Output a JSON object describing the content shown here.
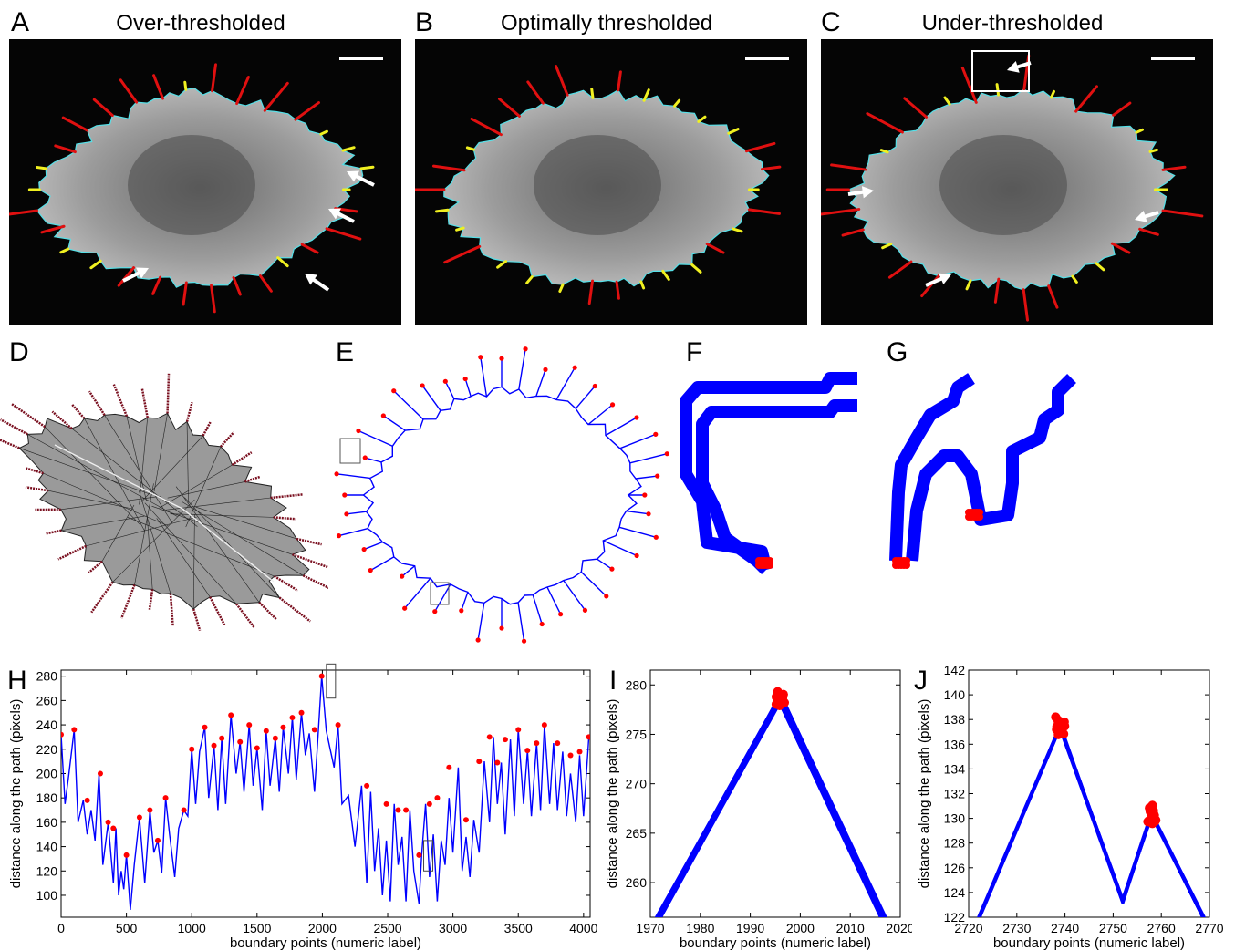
{
  "panels": {
    "A": {
      "letter": "A",
      "title": "Over-thresholded"
    },
    "B": {
      "letter": "B",
      "title": "Optimally thresholded"
    },
    "C": {
      "letter": "C",
      "title": "Under-thresholded"
    },
    "D": {
      "letter": "D"
    },
    "E": {
      "letter": "E"
    },
    "F": {
      "letter": "F"
    },
    "G": {
      "letter": "G"
    },
    "H": {
      "letter": "H"
    },
    "I": {
      "letter": "I"
    },
    "J": {
      "letter": "J"
    }
  },
  "colors": {
    "cell_boundary": "#55e0e8",
    "filopodia_long": "#e01010",
    "filopodia_short": "#f0f020",
    "path": "#0000ff",
    "tips": "#ff0000",
    "triangulation_fill": "#9a9a9a"
  },
  "chart_data": [
    {
      "panel": "H",
      "type": "line",
      "xlabel": "boundary points (numeric label)",
      "ylabel": "distance along the path (pixels)",
      "xlim": [
        0,
        4050
      ],
      "ylim": [
        82,
        285
      ],
      "xticks": [
        0,
        500,
        1000,
        1500,
        2000,
        2500,
        3000,
        3500,
        4000
      ],
      "yticks": [
        100,
        120,
        140,
        160,
        180,
        200,
        220,
        240,
        260,
        280
      ],
      "series": [
        {
          "x": [
            0,
            30,
            60,
            100,
            130,
            170,
            200,
            230,
            260,
            290,
            320,
            360,
            400,
            420,
            440,
            460,
            480,
            500,
            530,
            560,
            600,
            640,
            680,
            710,
            740,
            770,
            800,
            830,
            870,
            900,
            940,
            970,
            1000,
            1030,
            1060,
            1100,
            1130,
            1170,
            1200,
            1230,
            1260,
            1300,
            1340,
            1370,
            1400,
            1440,
            1470,
            1500,
            1540,
            1570,
            1600,
            1640,
            1670,
            1700,
            1740,
            1770,
            1800,
            1840,
            1870,
            1900,
            1940,
            1970,
            1995,
            2030,
            2060,
            2090,
            2120,
            2150,
            2200,
            2250,
            2300,
            2340,
            2370,
            2400,
            2430,
            2460,
            2490,
            2520,
            2550,
            2580,
            2610,
            2640,
            2670,
            2700,
            2740,
            2760,
            2790,
            2820,
            2850,
            2880,
            2910,
            2940,
            2970,
            3000,
            3040,
            3070,
            3100,
            3130,
            3160,
            3200,
            3240,
            3280,
            3310,
            3340,
            3370,
            3400,
            3440,
            3470,
            3500,
            3540,
            3570,
            3600,
            3640,
            3670,
            3700,
            3740,
            3770,
            3800,
            3840,
            3870,
            3900,
            3940,
            3970,
            4000,
            4040
          ],
          "y": [
            232,
            175,
            200,
            236,
            160,
            178,
            150,
            170,
            145,
            200,
            125,
            160,
            110,
            155,
            100,
            120,
            105,
            133,
            88,
            125,
            164,
            110,
            170,
            135,
            145,
            118,
            180,
            150,
            115,
            155,
            170,
            165,
            220,
            175,
            218,
            238,
            180,
            223,
            170,
            229,
            175,
            248,
            200,
            226,
            185,
            240,
            190,
            221,
            170,
            235,
            190,
            229,
            185,
            238,
            200,
            246,
            195,
            250,
            215,
            233,
            185,
            236,
            280,
            235,
            220,
            205,
            240,
            175,
            182,
            140,
            190,
            110,
            185,
            120,
            155,
            100,
            145,
            95,
            175,
            125,
            148,
            95,
            170,
            120,
            93,
            133,
            175,
            115,
            150,
            95,
            145,
            125,
            180,
            135,
            205,
            120,
            148,
            115,
            162,
            135,
            210,
            160,
            230,
            175,
            209,
            150,
            228,
            165,
            236,
            175,
            219,
            165,
            225,
            170,
            240,
            175,
            225,
            170,
            218,
            165,
            200,
            160,
            215,
            165,
            230
          ],
          "tips_x": [
            0,
            100,
            200,
            300,
            360,
            400,
            500,
            600,
            680,
            740,
            800,
            940,
            1000,
            1100,
            1170,
            1230,
            1300,
            1370,
            1440,
            1500,
            1570,
            1640,
            1700,
            1770,
            1840,
            1940,
            1995,
            2120,
            2340,
            2490,
            2580,
            2640,
            2740,
            2820,
            2880,
            2970,
            3100,
            3200,
            3280,
            3340,
            3400,
            3500,
            3570,
            3640,
            3700,
            3800,
            3900,
            3970,
            4040
          ],
          "tips_y": [
            232,
            236,
            178,
            200,
            160,
            155,
            133,
            164,
            170,
            145,
            180,
            170,
            220,
            238,
            223,
            229,
            248,
            226,
            240,
            221,
            235,
            229,
            238,
            246,
            250,
            236,
            280,
            240,
            190,
            175,
            170,
            170,
            133,
            175,
            180,
            205,
            162,
            210,
            230,
            209,
            228,
            236,
            219,
            225,
            240,
            225,
            215,
            218,
            230
          ]
        }
      ],
      "boxes": [
        {
          "x": [
            1975,
            2020
          ],
          "y": [
            262,
            290
          ]
        },
        {
          "x": [
            2720,
            2780
          ],
          "y": [
            120,
            145
          ]
        }
      ]
    },
    {
      "panel": "I",
      "type": "line",
      "xlabel": "boundary points (numeric label)",
      "ylabel": "distance along the path (pixels)",
      "xlim": [
        1970,
        2020
      ],
      "ylim": [
        256.5,
        281.5
      ],
      "xticks": [
        1970,
        1980,
        1990,
        2000,
        2010,
        2020
      ],
      "yticks": [
        260,
        265,
        270,
        275,
        280
      ],
      "series": [
        {
          "x": [
            1970,
            1996,
            2017
          ],
          "y": [
            255,
            278.6,
            256
          ]
        }
      ],
      "tips": {
        "x": 1996,
        "y": 278.5
      }
    },
    {
      "panel": "J",
      "type": "line",
      "xlabel": "boundary points (numeric label)",
      "ylabel": "distance along the path (pixels)",
      "xlim": [
        2720,
        2770
      ],
      "ylim": [
        122,
        142
      ],
      "xticks": [
        2720,
        2730,
        2740,
        2750,
        2760,
        2770
      ],
      "yticks": [
        122,
        124,
        126,
        128,
        130,
        132,
        134,
        136,
        138,
        140,
        142
      ],
      "series": [
        {
          "x": [
            2720,
            2739,
            2752,
            2758,
            2770
          ],
          "y": [
            120,
            137.4,
            123.3,
            130.3,
            121
          ]
        }
      ],
      "tips": [
        {
          "x": 2739,
          "y": 137.4
        },
        {
          "x": 2758,
          "y": 130.3
        }
      ]
    }
  ]
}
